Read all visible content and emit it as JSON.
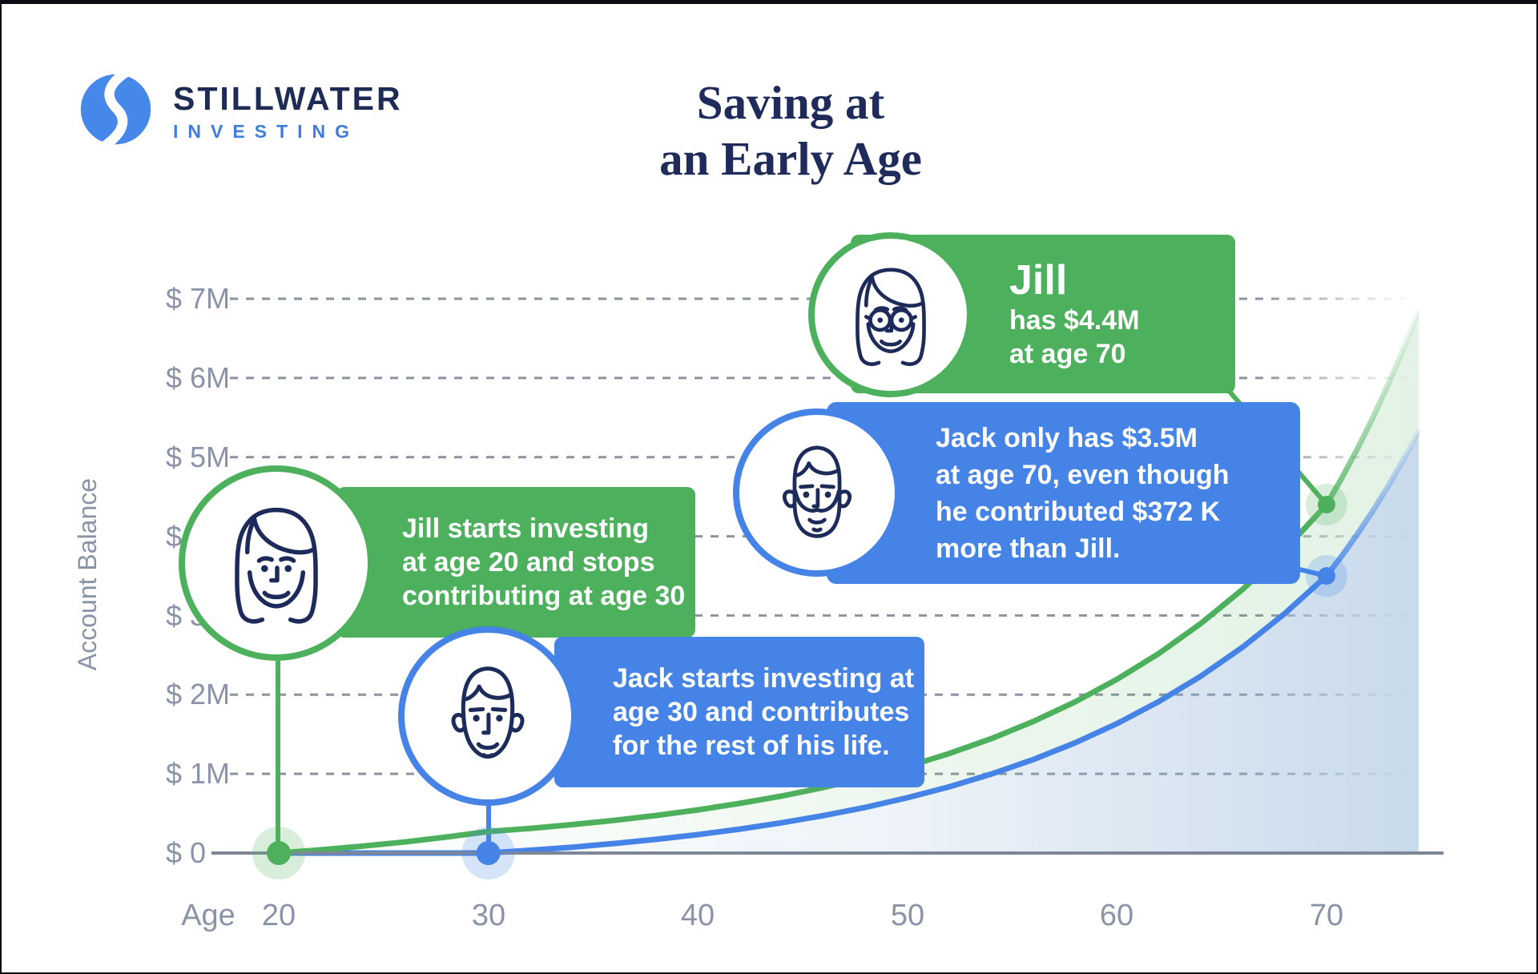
{
  "brand": {
    "name": "STILLWATER",
    "subtitle": "INVESTING",
    "navy": "#1d2b55",
    "blue": "#4687ea"
  },
  "title": {
    "line1": "Saving at",
    "line2": "an Early Age"
  },
  "callouts": {
    "jill_start": {
      "lines": [
        "Jill starts investing",
        "at age 20 and stops",
        "contributing at age 30"
      ]
    },
    "jack_start": {
      "lines": [
        "Jack starts investing at",
        "age 30 and contributes",
        "for the rest of his life."
      ]
    },
    "jill_result": {
      "name": "Jill",
      "lines": [
        "has $4.4M",
        "at age 70"
      ]
    },
    "jack_result": {
      "lines": [
        "Jack only has $3.5M",
        "at age 70, even though",
        "he contributed $372 K",
        "more than Jill."
      ]
    }
  },
  "chart_data": {
    "type": "line",
    "title": "Saving at an Early Age",
    "xlabel": "Age",
    "ylabel": "Account Balance",
    "units": "millions USD",
    "x_ticks": [
      20,
      30,
      40,
      50,
      60,
      70
    ],
    "x_tick_labels": [
      "20",
      "30",
      "40",
      "50",
      "60",
      "70"
    ],
    "y_ticks_millions": [
      7,
      6,
      5,
      4,
      3,
      2,
      1,
      0
    ],
    "y_tick_labels": [
      "$ 7M",
      "$ 6M",
      "$ 5M",
      "$ 4M",
      "$ 3M",
      "$ 2M",
      "$ 1M",
      "$ 0"
    ],
    "xlim": [
      20,
      75
    ],
    "ylim": [
      0,
      7.5
    ],
    "grid": "dashed-horizontal",
    "legend": "none",
    "series": [
      {
        "name": "Jill",
        "color": "#4CB05C",
        "points": [
          [
            20,
            0
          ],
          [
            22,
            0.04
          ],
          [
            24,
            0.087
          ],
          [
            26,
            0.14
          ],
          [
            28,
            0.202
          ],
          [
            30,
            0.272
          ],
          [
            32,
            0.312
          ],
          [
            34,
            0.359
          ],
          [
            36,
            0.413
          ],
          [
            38,
            0.474
          ],
          [
            40,
            0.545
          ],
          [
            42,
            0.627
          ],
          [
            44,
            0.72
          ],
          [
            46,
            0.828
          ],
          [
            48,
            0.952
          ],
          [
            50,
            1.094
          ],
          [
            52,
            1.257
          ],
          [
            54,
            1.445
          ],
          [
            56,
            1.661
          ],
          [
            58,
            1.909
          ],
          [
            60,
            2.194
          ],
          [
            62,
            2.521
          ],
          [
            64,
            2.898
          ],
          [
            66,
            3.331
          ],
          [
            68,
            3.828
          ],
          [
            70,
            4.4
          ]
        ]
      },
      {
        "name": "Jack",
        "color": "#4583E7",
        "points": [
          [
            20,
            0
          ],
          [
            25,
            0
          ],
          [
            30,
            0
          ],
          [
            32,
            0.035
          ],
          [
            34,
            0.074
          ],
          [
            36,
            0.12
          ],
          [
            38,
            0.173
          ],
          [
            40,
            0.233
          ],
          [
            42,
            0.302
          ],
          [
            44,
            0.382
          ],
          [
            46,
            0.473
          ],
          [
            48,
            0.578
          ],
          [
            50,
            0.699
          ],
          [
            52,
            0.838
          ],
          [
            54,
            0.997
          ],
          [
            56,
            1.18
          ],
          [
            58,
            1.392
          ],
          [
            60,
            1.635
          ],
          [
            62,
            1.914
          ],
          [
            64,
            2.234
          ],
          [
            66,
            2.602
          ],
          [
            68,
            3.024
          ],
          [
            70,
            3.5
          ]
        ]
      }
    ],
    "markers": [
      {
        "series": "Jill",
        "age": 20,
        "value": 0
      },
      {
        "series": "Jack",
        "age": 30,
        "value": 0
      },
      {
        "series": "Jill",
        "age": 70,
        "value": 4.4
      },
      {
        "series": "Jack",
        "age": 70,
        "value": 3.5
      }
    ],
    "annotations": [
      {
        "series": "Jill",
        "age": 20,
        "text": "Jill starts investing at age 20 and stops contributing at age 30"
      },
      {
        "series": "Jack",
        "age": 30,
        "text": "Jack starts investing at age 30 and contributes for the rest of his life."
      },
      {
        "series": "Jill",
        "age": 70,
        "text": "Jill has $4.4M at age 70"
      },
      {
        "series": "Jack",
        "age": 70,
        "text": "Jack only has $3.5M at age 70, even though he contributed $372 K more than Jill."
      }
    ]
  }
}
